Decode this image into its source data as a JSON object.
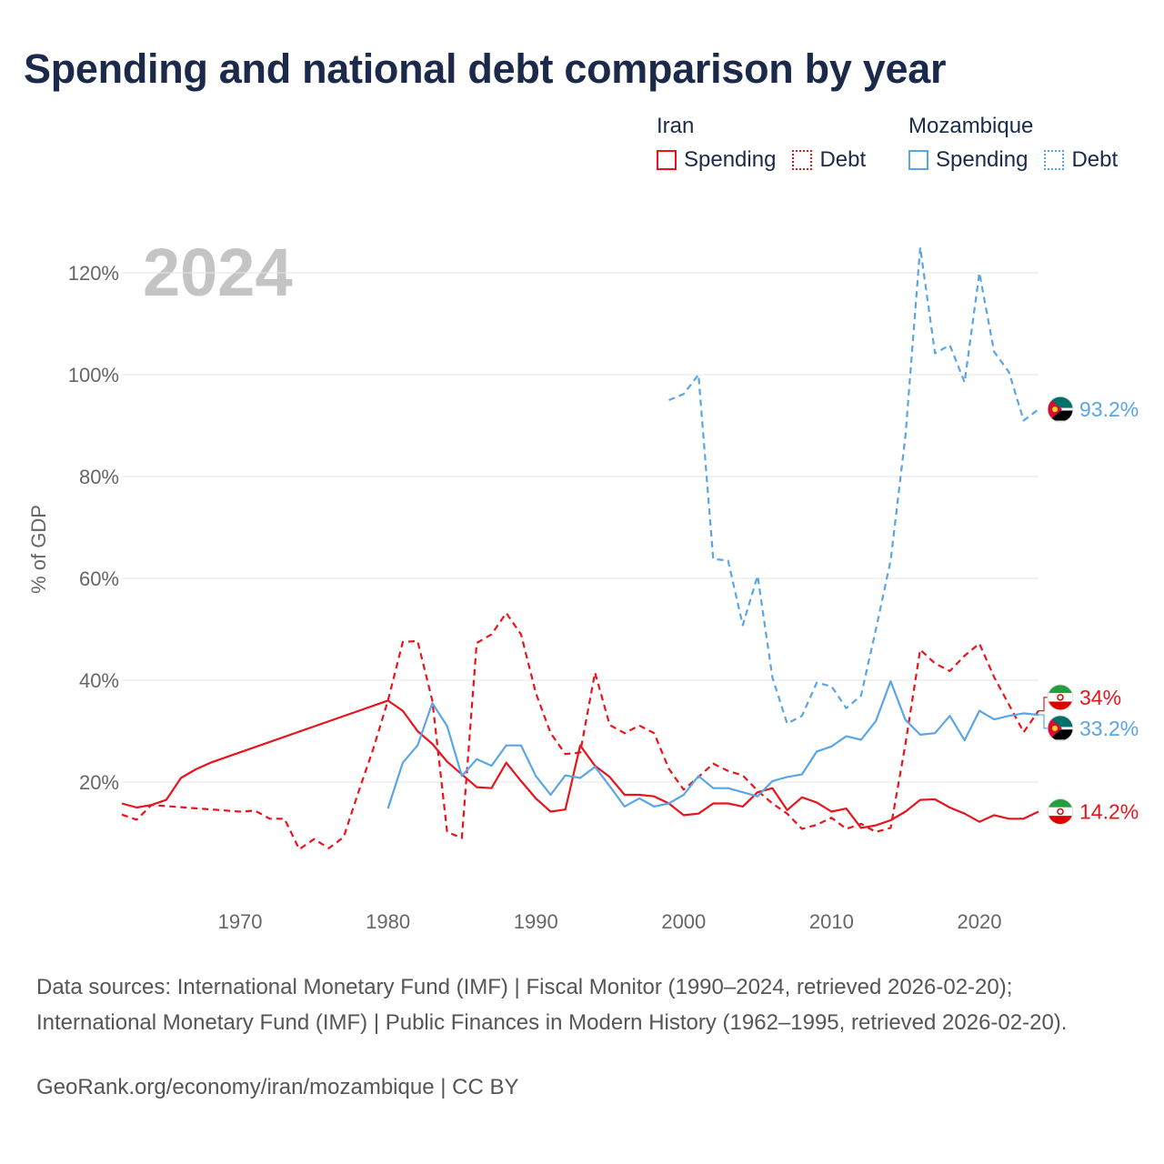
{
  "title": "Spending and national debt comparison by year",
  "legend": {
    "groups": [
      {
        "name": "Iran",
        "color": "#e8141c",
        "items": [
          {
            "label": "Spending",
            "style": "solid"
          },
          {
            "label": "Debt",
            "style": "dotted"
          }
        ]
      },
      {
        "name": "Mozambique",
        "color": "#5aa5e6",
        "items": [
          {
            "label": "Spending",
            "style": "solid"
          },
          {
            "label": "Debt",
            "style": "dotted"
          }
        ]
      }
    ]
  },
  "year_watermark": "2024",
  "footer": {
    "sources": "Data sources: International Monetary Fund (IMF) | Fiscal Monitor (1990–2024, retrieved 2026-02-20); International Monetary Fund (IMF) | Public Finances in Modern History (1962–1995, retrieved 2026-02-20).",
    "credit": "GeoRank.org/economy/iran/mozambique | CC BY"
  },
  "chart_data": {
    "type": "line",
    "title": "Spending and national debt comparison by year",
    "xlabel": "",
    "ylabel": "% of GDP",
    "xlim": [
      1962,
      2024
    ],
    "ylim": [
      0,
      125
    ],
    "x_ticks": [
      1970,
      1980,
      1990,
      2000,
      2010,
      2020
    ],
    "y_ticks": [
      20,
      40,
      60,
      80,
      100,
      120
    ],
    "y_tick_labels": [
      "20%",
      "40%",
      "60%",
      "80%",
      "100%",
      "120%"
    ],
    "grid": true,
    "series": [
      {
        "name": "Iran Spending",
        "country": "Iran",
        "measure": "Spending",
        "color": "#e8141c",
        "dash": "solid",
        "end_label": "14.2%",
        "points": [
          [
            1962,
            15.8
          ],
          [
            1963,
            15
          ],
          [
            1964,
            15.5
          ],
          [
            1965,
            16.5
          ],
          [
            1966,
            20.8
          ],
          [
            1967,
            22.5
          ],
          [
            1968,
            23.8
          ],
          [
            1980,
            36
          ],
          [
            1981,
            34
          ],
          [
            1982,
            30
          ],
          [
            1983,
            27.5
          ],
          [
            1984,
            24
          ],
          [
            1985,
            21.5
          ],
          [
            1986,
            19
          ],
          [
            1987,
            18.8
          ],
          [
            1988,
            23.8
          ],
          [
            1989,
            20.2
          ],
          [
            1990,
            16.8
          ],
          [
            1991,
            14.2
          ],
          [
            1992,
            14.6
          ],
          [
            1993,
            27.2
          ],
          [
            1994,
            23.2
          ],
          [
            1995,
            21
          ],
          [
            1996,
            17.5
          ],
          [
            1997,
            17.5
          ],
          [
            1998,
            17.2
          ],
          [
            1999,
            15.8
          ],
          [
            2000,
            13.5
          ],
          [
            2001,
            13.8
          ],
          [
            2002,
            15.8
          ],
          [
            2003,
            15.8
          ],
          [
            2004,
            15.2
          ],
          [
            2005,
            18
          ],
          [
            2006,
            18.8
          ],
          [
            2007,
            14.5
          ],
          [
            2008,
            17
          ],
          [
            2009,
            16
          ],
          [
            2010,
            14.2
          ],
          [
            2011,
            14.8
          ],
          [
            2012,
            11
          ],
          [
            2013,
            11.5
          ],
          [
            2014,
            12.5
          ],
          [
            2015,
            14.2
          ],
          [
            2016,
            16.5
          ],
          [
            2017,
            16.6
          ],
          [
            2018,
            15
          ],
          [
            2019,
            13.8
          ],
          [
            2020,
            12.2
          ],
          [
            2021,
            13.5
          ],
          [
            2022,
            12.8
          ],
          [
            2023,
            12.8
          ],
          [
            2024,
            14.2
          ]
        ]
      },
      {
        "name": "Iran Debt",
        "country": "Iran",
        "measure": "Debt",
        "color": "#e8141c",
        "dash": "dashed",
        "end_label": "34%",
        "points": [
          [
            1962,
            13.6
          ],
          [
            1963,
            12.6
          ],
          [
            1964,
            15.5
          ],
          [
            1970,
            14.2
          ],
          [
            1971,
            14.4
          ],
          [
            1972,
            12.8
          ],
          [
            1973,
            12.8
          ],
          [
            1974,
            6.8
          ],
          [
            1975,
            8.8
          ],
          [
            1976,
            7
          ],
          [
            1977,
            9.2
          ],
          [
            1978,
            18
          ],
          [
            1979,
            26.5
          ],
          [
            1980,
            36
          ],
          [
            1981,
            47.5
          ],
          [
            1982,
            47.7
          ],
          [
            1983,
            36
          ],
          [
            1984,
            10.2
          ],
          [
            1985,
            9
          ],
          [
            1986,
            47.3
          ],
          [
            1987,
            49
          ],
          [
            1988,
            53.2
          ],
          [
            1989,
            49
          ],
          [
            1990,
            37.5
          ],
          [
            1991,
            29.6
          ],
          [
            1992,
            25.5
          ],
          [
            1993,
            25.8
          ],
          [
            1994,
            41.5
          ],
          [
            1995,
            31.2
          ],
          [
            1996,
            29.6
          ],
          [
            1997,
            31.1
          ],
          [
            1998,
            29.6
          ],
          [
            1999,
            22.6
          ],
          [
            2000,
            18.5
          ],
          [
            2001,
            21
          ],
          [
            2002,
            23.6
          ],
          [
            2003,
            22.2
          ],
          [
            2004,
            21.3
          ],
          [
            2005,
            18.3
          ],
          [
            2006,
            15.8
          ],
          [
            2007,
            13.8
          ],
          [
            2008,
            10.8
          ],
          [
            2009,
            11.6
          ],
          [
            2010,
            13
          ],
          [
            2011,
            10.8
          ],
          [
            2012,
            11.8
          ],
          [
            2013,
            10.2
          ],
          [
            2014,
            11
          ],
          [
            2015,
            27.5
          ],
          [
            2016,
            46
          ],
          [
            2017,
            43.3
          ],
          [
            2018,
            41.8
          ],
          [
            2019,
            44.8
          ],
          [
            2020,
            47.2
          ],
          [
            2021,
            40.6
          ],
          [
            2022,
            35.2
          ],
          [
            2023,
            29.8
          ],
          [
            2024,
            34
          ]
        ]
      },
      {
        "name": "Mozambique Spending",
        "country": "Mozambique",
        "measure": "Spending",
        "color": "#5aa5e6",
        "dash": "solid",
        "end_label": "33.2%",
        "points": [
          [
            1980,
            14.8
          ],
          [
            1981,
            23.8
          ],
          [
            1982,
            27.2
          ],
          [
            1983,
            35.5
          ],
          [
            1984,
            31
          ],
          [
            1985,
            21.2
          ],
          [
            1986,
            24.5
          ],
          [
            1987,
            23.2
          ],
          [
            1988,
            27.2
          ],
          [
            1989,
            27.2
          ],
          [
            1990,
            21.2
          ],
          [
            1991,
            17.5
          ],
          [
            1992,
            21.3
          ],
          [
            1993,
            20.8
          ],
          [
            1994,
            23
          ],
          [
            1995,
            19.2
          ],
          [
            1996,
            15.2
          ],
          [
            1997,
            16.8
          ],
          [
            1998,
            15.2
          ],
          [
            1999,
            15.8
          ],
          [
            2000,
            17.5
          ],
          [
            2001,
            21.2
          ],
          [
            2002,
            18.8
          ],
          [
            2003,
            18.8
          ],
          [
            2004,
            18
          ],
          [
            2005,
            17.2
          ],
          [
            2006,
            20.2
          ],
          [
            2007,
            21
          ],
          [
            2008,
            21.5
          ],
          [
            2009,
            26
          ],
          [
            2010,
            27
          ],
          [
            2011,
            29
          ],
          [
            2012,
            28.3
          ],
          [
            2013,
            32
          ],
          [
            2014,
            39.8
          ],
          [
            2015,
            32.2
          ],
          [
            2016,
            29.3
          ],
          [
            2017,
            29.6
          ],
          [
            2018,
            33
          ],
          [
            2019,
            28.2
          ],
          [
            2020,
            34
          ],
          [
            2021,
            32.3
          ],
          [
            2022,
            33
          ],
          [
            2023,
            33.5
          ],
          [
            2024,
            33.2
          ]
        ]
      },
      {
        "name": "Mozambique Debt",
        "country": "Mozambique",
        "measure": "Debt",
        "color": "#5aa5e6",
        "dash": "dashed",
        "end_label": "93.2%",
        "points": [
          [
            1999,
            95
          ],
          [
            2000,
            96.2
          ],
          [
            2001,
            100
          ],
          [
            2002,
            63.8
          ],
          [
            2003,
            63.5
          ],
          [
            2004,
            50.8
          ],
          [
            2005,
            60.5
          ],
          [
            2006,
            40.5
          ],
          [
            2007,
            31.5
          ],
          [
            2008,
            33
          ],
          [
            2009,
            39.5
          ],
          [
            2010,
            38.8
          ],
          [
            2011,
            34.5
          ],
          [
            2012,
            37
          ],
          [
            2013,
            50
          ],
          [
            2014,
            63.5
          ],
          [
            2015,
            88
          ],
          [
            2016,
            125
          ],
          [
            2017,
            104.2
          ],
          [
            2018,
            105.8
          ],
          [
            2019,
            98.5
          ],
          [
            2020,
            120
          ],
          [
            2021,
            104.5
          ],
          [
            2022,
            100.5
          ],
          [
            2023,
            91
          ],
          [
            2024,
            93.2
          ]
        ]
      }
    ]
  }
}
